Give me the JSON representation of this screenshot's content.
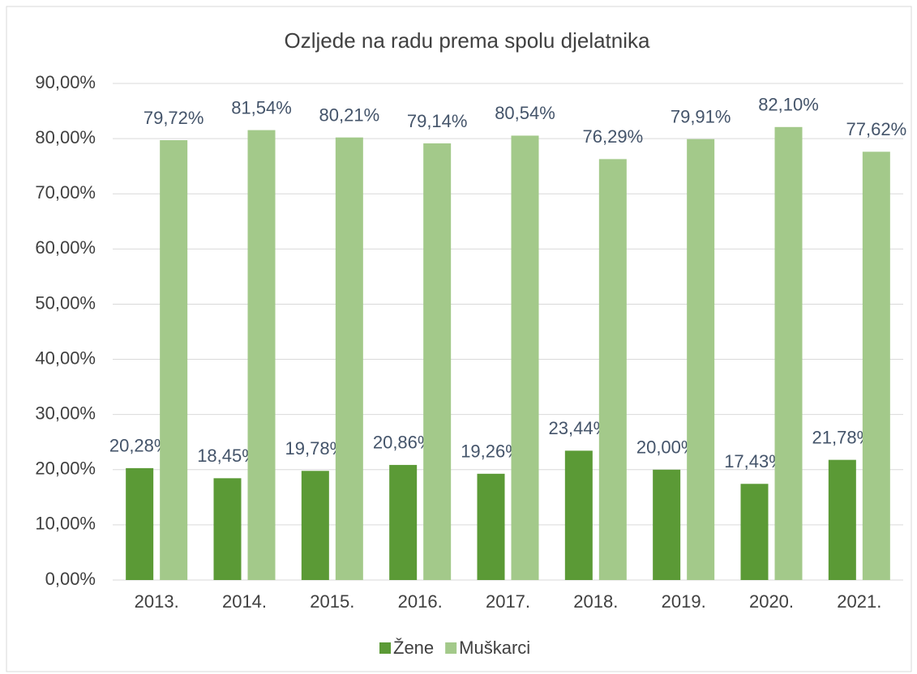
{
  "chart_data": {
    "type": "bar",
    "title": "Ozljede na radu prema spolu djelatnika",
    "categories": [
      "2013.",
      "2014.",
      "2015.",
      "2016.",
      "2017.",
      "2018.",
      "2019.",
      "2020.",
      "2021."
    ],
    "series": [
      {
        "name": "Žene",
        "color": "#5b9a36",
        "values": [
          20.28,
          18.45,
          19.78,
          20.86,
          19.26,
          23.44,
          20.0,
          17.43,
          21.78
        ],
        "value_labels": [
          "20,28%",
          "18,45%",
          "19,78%",
          "20,86%",
          "19,26%",
          "23,44%",
          "20,00%",
          "17,43%",
          "21,78%"
        ]
      },
      {
        "name": "Muškarci",
        "color": "#a3c98a",
        "values": [
          79.72,
          81.54,
          80.21,
          79.14,
          80.54,
          76.29,
          79.91,
          82.1,
          77.62
        ],
        "value_labels": [
          "79,72%",
          "81,54%",
          "80,21%",
          "79,14%",
          "80,54%",
          "76,29%",
          "79,91%",
          "82,10%",
          "77,62%"
        ]
      }
    ],
    "ylim": [
      0,
      90
    ],
    "yticks": [
      {
        "value": 0,
        "label": "0,00%"
      },
      {
        "value": 10,
        "label": "10,00%"
      },
      {
        "value": 20,
        "label": "20,00%"
      },
      {
        "value": 30,
        "label": "30,00%"
      },
      {
        "value": 40,
        "label": "40,00%"
      },
      {
        "value": 50,
        "label": "50,00%"
      },
      {
        "value": 60,
        "label": "60,00%"
      },
      {
        "value": 70,
        "label": "70,00%"
      },
      {
        "value": 80,
        "label": "80,00%"
      },
      {
        "value": 90,
        "label": "90,00%"
      }
    ],
    "grid": true,
    "legend": "bottom"
  }
}
